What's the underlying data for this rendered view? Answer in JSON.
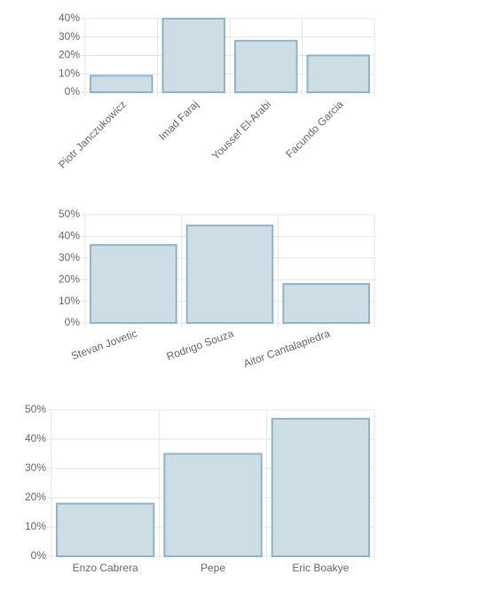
{
  "chart_data": [
    {
      "type": "bar",
      "categories": [
        "Piotr Janczukowicz",
        "Imad Faraj",
        "Youssef El-Arabi",
        "Facundo Garcia"
      ],
      "values": [
        9,
        40,
        28,
        20
      ],
      "color": "#ccdde6",
      "ylim": [
        0,
        40
      ],
      "yticks": [
        {
          "value": 0,
          "label": "0%"
        },
        {
          "value": 10,
          "label": "10%"
        },
        {
          "value": 20,
          "label": "20%"
        },
        {
          "value": 30,
          "label": "30%"
        },
        {
          "value": 40,
          "label": "40%"
        }
      ],
      "grid": true
    },
    {
      "type": "bar",
      "categories": [
        "Stevan Jovetic",
        "Rodrigo Souza",
        "Aitor Cantalapiedra"
      ],
      "values": [
        36,
        45,
        18
      ],
      "color": "#ccdde6",
      "ylim": [
        0,
        50
      ],
      "yticks": [
        {
          "value": 0,
          "label": "0%"
        },
        {
          "value": 10,
          "label": "10%"
        },
        {
          "value": 20,
          "label": "20%"
        },
        {
          "value": 30,
          "label": "30%"
        },
        {
          "value": 40,
          "label": "40%"
        },
        {
          "value": 50,
          "label": "50%"
        }
      ],
      "grid": true
    },
    {
      "type": "bar",
      "categories": [
        "Enzo Cabrera",
        "Pepe",
        "Eric Boakye"
      ],
      "values": [
        18,
        35,
        47
      ],
      "color": "#ccdde6",
      "ylim": [
        0,
        50
      ],
      "yticks": [
        {
          "value": 0,
          "label": "0%"
        },
        {
          "value": 10,
          "label": "10%"
        },
        {
          "value": 20,
          "label": "20%"
        },
        {
          "value": 30,
          "label": "30%"
        },
        {
          "value": 40,
          "label": "40%"
        },
        {
          "value": 50,
          "label": "50%"
        }
      ],
      "grid": true
    }
  ]
}
